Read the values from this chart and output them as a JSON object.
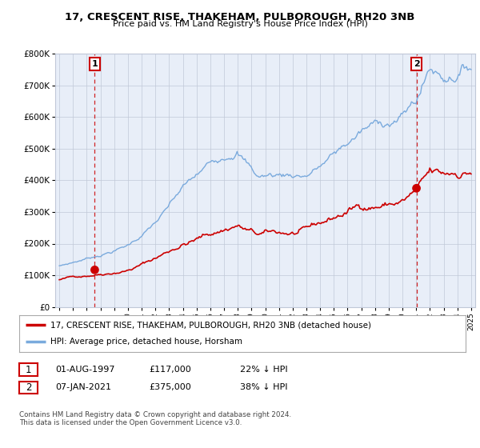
{
  "title": "17, CRESCENT RISE, THAKEHAM, PULBOROUGH, RH20 3NB",
  "subtitle": "Price paid vs. HM Land Registry's House Price Index (HPI)",
  "ylim": [
    0,
    800000
  ],
  "yticks": [
    0,
    100000,
    200000,
    300000,
    400000,
    500000,
    600000,
    700000,
    800000
  ],
  "ytick_labels": [
    "£0",
    "£100K",
    "£200K",
    "£300K",
    "£400K",
    "£500K",
    "£600K",
    "£700K",
    "£800K"
  ],
  "legend_line1": "17, CRESCENT RISE, THAKEHAM, PULBOROUGH, RH20 3NB (detached house)",
  "legend_line2": "HPI: Average price, detached house, Horsham",
  "annotation1_date": "01-AUG-1997",
  "annotation1_price": "£117,000",
  "annotation1_hpi": "22% ↓ HPI",
  "annotation2_date": "07-JAN-2021",
  "annotation2_price": "£375,000",
  "annotation2_hpi": "38% ↓ HPI",
  "footer": "Contains HM Land Registry data © Crown copyright and database right 2024.\nThis data is licensed under the Open Government Licence v3.0.",
  "sale_color": "#cc0000",
  "hpi_color": "#7aaadd",
  "plot_bg": "#e8eef8",
  "sale1_year": 1997.58,
  "sale1_value": 117000,
  "sale2_year": 2021.02,
  "sale2_value": 375000,
  "xlim_left": 1994.7,
  "xlim_right": 2025.3
}
